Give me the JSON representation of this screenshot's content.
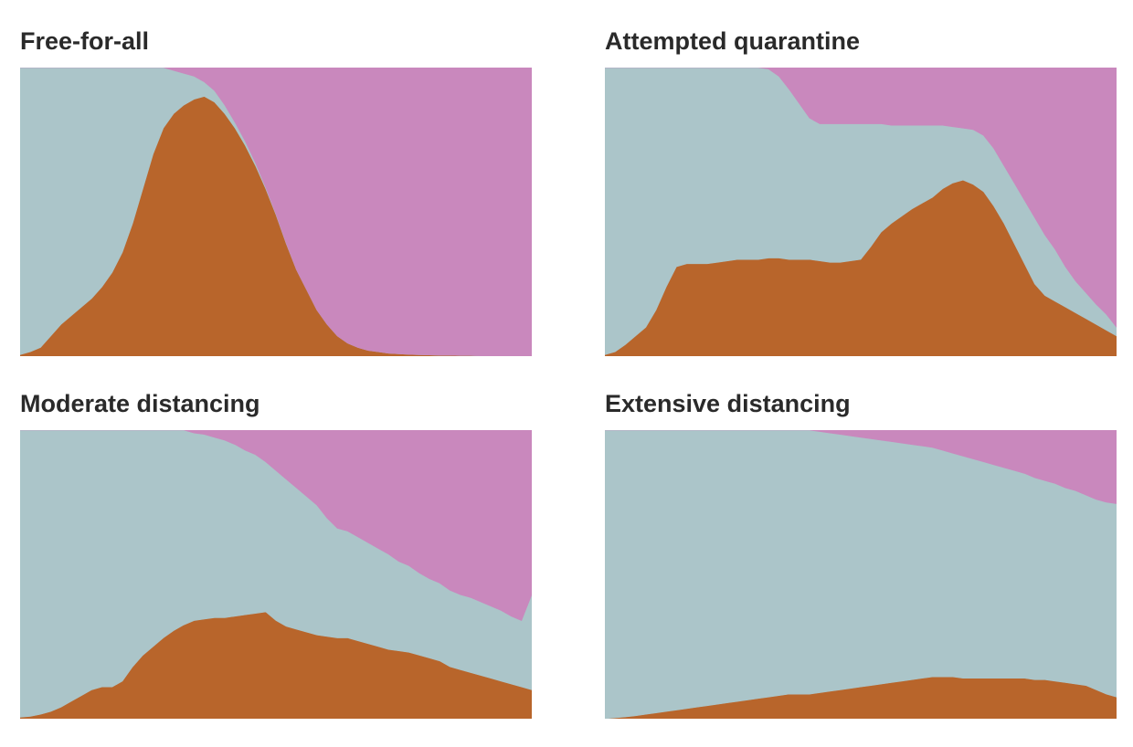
{
  "colors": {
    "infected": "#b8652b",
    "healthy": "#abc5c9",
    "recovered": "#c988bd"
  },
  "chart_data": [
    {
      "type": "area",
      "stacked": true,
      "title": "Free-for-all",
      "xlabel": "",
      "ylabel": "",
      "grid": false,
      "legend": "none",
      "x": [
        0,
        2,
        4,
        6,
        8,
        10,
        12,
        14,
        16,
        18,
        20,
        22,
        24,
        26,
        28,
        30,
        32,
        34,
        36,
        38,
        40,
        42,
        44,
        46,
        48,
        50,
        52,
        54,
        56,
        58,
        60,
        62,
        64,
        66,
        68,
        70,
        72,
        74,
        76,
        78,
        80,
        82,
        84,
        86,
        88,
        90,
        92,
        94,
        96,
        98,
        100
      ],
      "xlim": [
        0,
        100
      ],
      "ylim": [
        0,
        100
      ],
      "series": [
        {
          "key": "infected",
          "values": [
            0.5,
            1.5,
            3,
            7,
            11,
            14,
            17,
            20,
            24,
            29,
            36,
            46,
            58,
            70,
            79,
            84,
            87,
            89,
            90,
            88,
            84,
            79,
            73,
            66,
            58,
            49,
            39,
            30,
            23,
            16,
            11,
            7,
            4.5,
            3,
            2,
            1.5,
            1,
            0.8,
            0.6,
            0.5,
            0.4,
            0.3,
            0.3,
            0.2,
            0.2,
            0.1,
            0.1,
            0.1,
            0,
            0,
            0
          ]
        },
        {
          "key": "healthy",
          "values": [
            99.5,
            98.5,
            97,
            93,
            89,
            86,
            83,
            80,
            76,
            71,
            64,
            54,
            42,
            30,
            21,
            15,
            11,
            8,
            5,
            4,
            3,
            2,
            1.5,
            1,
            0.5,
            0.3,
            0.2,
            0,
            0,
            0,
            0,
            0,
            0,
            0,
            0,
            0,
            0,
            0,
            0,
            0,
            0,
            0,
            0,
            0,
            0,
            0,
            0,
            0,
            0,
            0,
            0
          ]
        },
        {
          "key": "recovered",
          "values": [
            0,
            0,
            0,
            0,
            0,
            0,
            0,
            0,
            0,
            0,
            0,
            0,
            0,
            0,
            0,
            1,
            2,
            3,
            5,
            8,
            13,
            19,
            25.5,
            33,
            41.5,
            50.7,
            60.8,
            70,
            77,
            84,
            89,
            93,
            95.5,
            97,
            98,
            98.5,
            99,
            99.2,
            99.4,
            99.5,
            99.6,
            99.7,
            99.7,
            99.8,
            99.8,
            99.9,
            99.9,
            99.9,
            100,
            100,
            100
          ]
        }
      ]
    },
    {
      "type": "area",
      "stacked": true,
      "title": "Attempted quarantine",
      "xlabel": "",
      "ylabel": "",
      "grid": false,
      "legend": "none",
      "x": [
        0,
        2,
        4,
        6,
        8,
        10,
        12,
        14,
        16,
        18,
        20,
        22,
        24,
        26,
        28,
        30,
        32,
        34,
        36,
        38,
        40,
        42,
        44,
        46,
        48,
        50,
        52,
        54,
        56,
        58,
        60,
        62,
        64,
        66,
        68,
        70,
        72,
        74,
        76,
        78,
        80,
        82,
        84,
        86,
        88,
        90,
        92,
        94,
        96,
        98,
        100
      ],
      "xlim": [
        0,
        100
      ],
      "ylim": [
        0,
        100
      ],
      "series": [
        {
          "key": "infected",
          "values": [
            0.5,
            1.5,
            4,
            7,
            10,
            16,
            24,
            31,
            32,
            32,
            32,
            32.5,
            33,
            33.5,
            33.5,
            33.5,
            34,
            34,
            33.5,
            33.5,
            33.5,
            33,
            32.5,
            32.5,
            33,
            33.5,
            38,
            43,
            46,
            48.5,
            51,
            53,
            55,
            58,
            60,
            61,
            59.5,
            57,
            52,
            46,
            39,
            32,
            25,
            21,
            19,
            17,
            15,
            13,
            11,
            9,
            7
          ]
        },
        {
          "key": "healthy",
          "values": [
            99.5,
            98.5,
            96,
            93,
            90,
            84,
            76,
            69,
            68,
            68,
            68,
            67.5,
            67,
            66.5,
            66.5,
            66.5,
            65.5,
            63,
            59,
            54,
            49,
            47.5,
            48,
            48,
            47.5,
            47,
            42.5,
            37.5,
            34,
            31.5,
            29,
            27,
            25,
            22,
            19.5,
            18,
            19,
            19.5,
            20,
            20,
            21,
            22,
            23,
            21,
            18,
            14,
            11,
            9,
            7,
            5.5,
            3
          ]
        },
        {
          "key": "recovered",
          "values": [
            0,
            0,
            0,
            0,
            0,
            0,
            0,
            0,
            0,
            0,
            0,
            0,
            0,
            0,
            0,
            0,
            0.5,
            3,
            7.5,
            12.5,
            17.5,
            19.5,
            19.5,
            19.5,
            19.5,
            19.5,
            19.5,
            19.5,
            20,
            20,
            20,
            20,
            20,
            20,
            20.5,
            21,
            21.5,
            23.5,
            28,
            34,
            40,
            46,
            52,
            58,
            63,
            69,
            74,
            78,
            82,
            85.5,
            90
          ]
        }
      ]
    },
    {
      "type": "area",
      "stacked": true,
      "title": "Moderate distancing",
      "xlabel": "",
      "ylabel": "",
      "grid": false,
      "legend": "none",
      "x": [
        0,
        2,
        4,
        6,
        8,
        10,
        12,
        14,
        16,
        18,
        20,
        22,
        24,
        26,
        28,
        30,
        32,
        34,
        36,
        38,
        40,
        42,
        44,
        46,
        48,
        50,
        52,
        54,
        56,
        58,
        60,
        62,
        64,
        66,
        68,
        70,
        72,
        74,
        76,
        78,
        80,
        82,
        84,
        86,
        88,
        90,
        92,
        94,
        96,
        98,
        100
      ],
      "xlim": [
        0,
        100
      ],
      "ylim": [
        0,
        100
      ],
      "series": [
        {
          "key": "infected",
          "values": [
            0.5,
            0.8,
            1.5,
            2.5,
            4,
            6,
            8,
            10,
            11,
            11,
            13,
            18,
            22,
            25,
            28,
            30.5,
            32.5,
            34,
            34.5,
            35,
            35,
            35.5,
            36,
            36.5,
            37,
            34,
            32,
            31,
            30,
            29,
            28.5,
            28,
            28,
            27,
            26,
            25,
            24,
            23.5,
            23,
            22,
            21,
            20,
            18,
            17,
            16,
            15,
            14,
            13,
            12,
            11,
            10
          ]
        },
        {
          "key": "healthy",
          "values": [
            99.5,
            99.2,
            98.5,
            97.5,
            96,
            94,
            92,
            90,
            89,
            89,
            87,
            82,
            78,
            75,
            72,
            69.5,
            67.5,
            65,
            64,
            62.5,
            61.5,
            59.5,
            57,
            55,
            52,
            52,
            51,
            49,
            47,
            45,
            41,
            38,
            37,
            36,
            35,
            34,
            33,
            31,
            30,
            28.5,
            27.5,
            27,
            26.5,
            26,
            26,
            25.5,
            25,
            24.5,
            23.5,
            23,
            33
          ]
        },
        {
          "key": "recovered",
          "values": [
            0,
            0,
            0,
            0,
            0,
            0,
            0,
            0,
            0,
            0,
            0,
            0,
            0,
            0,
            0,
            0,
            0,
            1,
            1.5,
            2.5,
            3.5,
            5,
            7,
            8.5,
            11,
            14,
            17,
            20,
            23,
            26,
            30.5,
            34,
            35,
            37,
            39,
            41,
            43,
            45.5,
            47,
            49.5,
            51.5,
            53,
            55.5,
            57,
            58,
            59.5,
            61,
            62.5,
            64.5,
            66,
            57
          ]
        }
      ]
    },
    {
      "type": "area",
      "stacked": true,
      "title": "Extensive distancing",
      "xlabel": "",
      "ylabel": "",
      "grid": false,
      "legend": "none",
      "x": [
        0,
        2,
        4,
        6,
        8,
        10,
        12,
        14,
        16,
        18,
        20,
        22,
        24,
        26,
        28,
        30,
        32,
        34,
        36,
        38,
        40,
        42,
        44,
        46,
        48,
        50,
        52,
        54,
        56,
        58,
        60,
        62,
        64,
        66,
        68,
        70,
        72,
        74,
        76,
        78,
        80,
        82,
        84,
        86,
        88,
        90,
        92,
        94,
        96,
        98,
        100
      ],
      "xlim": [
        0,
        100
      ],
      "ylim": [
        0,
        100
      ],
      "series": [
        {
          "key": "infected",
          "values": [
            0,
            0.3,
            0.6,
            1,
            1.5,
            2,
            2.5,
            3,
            3.5,
            4,
            4.5,
            5,
            5.5,
            6,
            6.5,
            7,
            7.5,
            8,
            8.5,
            8.5,
            8.5,
            9,
            9.5,
            10,
            10.5,
            11,
            11.5,
            12,
            12.5,
            13,
            13.5,
            14,
            14.5,
            14.5,
            14.5,
            14,
            14,
            14,
            14,
            14,
            14,
            14,
            13.5,
            13.5,
            13,
            12.5,
            12,
            11.5,
            10,
            8.5,
            7.5
          ]
        },
        {
          "key": "healthy",
          "values": [
            100,
            99.7,
            99.4,
            99,
            98.5,
            98,
            97.5,
            97,
            96.5,
            96,
            95.5,
            95,
            94.5,
            94,
            93.5,
            93,
            92.5,
            92,
            91.5,
            91.5,
            91.5,
            90.5,
            89.5,
            88.5,
            87.5,
            86.5,
            85.5,
            84.5,
            83.5,
            82.5,
            81.5,
            80.5,
            79.5,
            78.5,
            77.5,
            77,
            76,
            75,
            74,
            73,
            72,
            71,
            70,
            69,
            68.5,
            67.5,
            67,
            66,
            66,
            66.5,
            67
          ]
        },
        {
          "key": "recovered",
          "values": [
            0,
            0,
            0,
            0,
            0,
            0,
            0,
            0,
            0,
            0,
            0,
            0,
            0,
            0,
            0,
            0,
            0,
            0,
            0,
            0,
            0,
            0.5,
            1,
            1.5,
            2,
            2.5,
            3,
            3.5,
            4,
            4.5,
            5,
            5.5,
            6,
            7,
            8,
            9,
            10,
            11,
            12,
            13,
            14,
            15,
            16.5,
            17.5,
            18.5,
            20,
            21,
            22.5,
            24,
            25,
            25.5
          ]
        }
      ]
    }
  ]
}
